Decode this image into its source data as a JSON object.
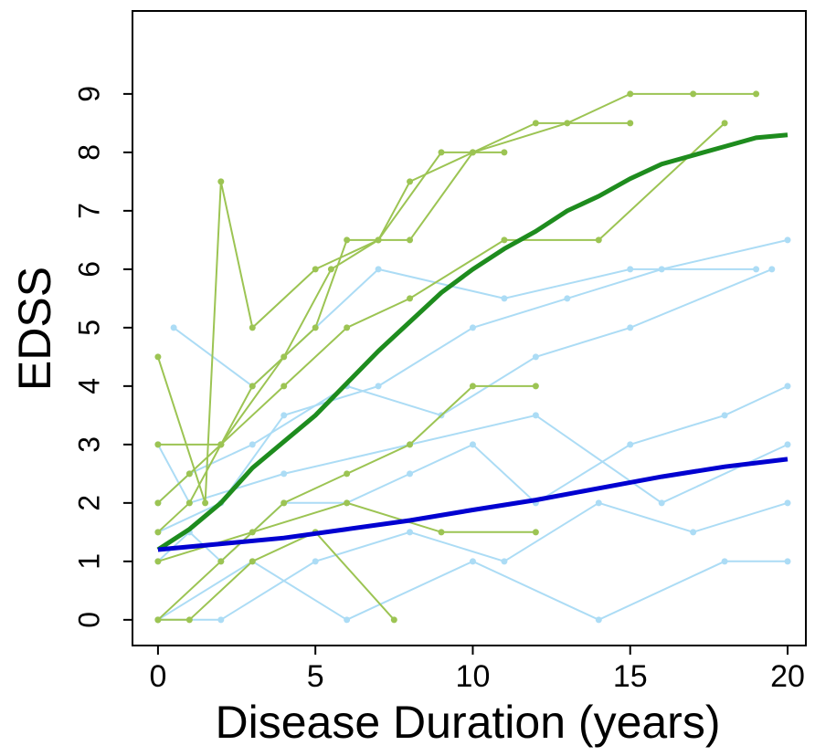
{
  "chart_data": {
    "type": "line",
    "xlabel": "Disease Duration (years)",
    "ylabel": "EDSS",
    "xlim": [
      -0.81,
      20.58
    ],
    "ylim": [
      -0.44,
      10.42
    ],
    "xticks": [
      0,
      5,
      10,
      15,
      20
    ],
    "yticks": [
      0,
      1,
      2,
      3,
      4,
      5,
      6,
      7,
      8,
      9
    ],
    "series": [
      {
        "color": "#acdcf5",
        "x": [
          0,
          1,
          2,
          4,
          6,
          8,
          10,
          12,
          15,
          18,
          20
        ],
        "values": [
          1,
          1.5,
          1,
          2,
          2,
          2.5,
          3,
          2,
          3,
          3.5,
          4
        ]
      },
      {
        "color": "#acdcf5",
        "x": [
          0,
          2,
          5,
          8,
          11,
          14,
          17,
          20
        ],
        "values": [
          0,
          0,
          1,
          1.5,
          1,
          2,
          1.5,
          2
        ]
      },
      {
        "color": "#acdcf5",
        "x": [
          0,
          1,
          3,
          6,
          9,
          12,
          15,
          19.5
        ],
        "values": [
          2,
          2.5,
          3,
          4,
          3.5,
          4.5,
          5,
          6
        ]
      },
      {
        "color": "#acdcf5",
        "x": [
          0,
          2,
          4,
          7,
          10,
          13,
          16,
          20
        ],
        "values": [
          1.5,
          2,
          3.5,
          4,
          5,
          5.5,
          6,
          6.5
        ]
      },
      {
        "color": "#acdcf5",
        "x": [
          0,
          3,
          6,
          10,
          14,
          18,
          20
        ],
        "values": [
          0,
          1,
          0,
          1,
          0,
          1,
          1
        ]
      },
      {
        "color": "#acdcf5",
        "x": [
          0,
          1,
          4,
          8,
          12,
          16,
          20
        ],
        "values": [
          3,
          2,
          2.5,
          3,
          3.5,
          2,
          3
        ]
      },
      {
        "color": "#acdcf5",
        "x": [
          0.5,
          3,
          7,
          11,
          15,
          19
        ],
        "values": [
          5,
          4,
          6,
          5.5,
          6,
          6
        ]
      },
      {
        "color": "#9cc453",
        "x": [
          0,
          1,
          2,
          3,
          5,
          6,
          8,
          10,
          12,
          15
        ],
        "values": [
          1.5,
          2,
          3,
          4,
          5,
          6.5,
          6.5,
          8,
          8.5,
          8.5
        ]
      },
      {
        "color": "#9cc453",
        "x": [
          0,
          2,
          4,
          6,
          8,
          10,
          12
        ],
        "values": [
          0,
          1,
          2,
          2.5,
          3,
          4,
          4
        ]
      },
      {
        "color": "#9cc453",
        "x": [
          0,
          1,
          2,
          4,
          5.5,
          7,
          8,
          10,
          13,
          15,
          17,
          19
        ],
        "values": [
          2,
          2.5,
          3,
          4.5,
          6,
          6.5,
          7.5,
          8,
          8.5,
          9,
          9,
          9
        ]
      },
      {
        "color": "#9cc453",
        "x": [
          0,
          1.5,
          2,
          3,
          5,
          7,
          9,
          11
        ],
        "values": [
          4.5,
          2,
          7.5,
          5,
          6,
          6.5,
          8,
          8
        ]
      },
      {
        "color": "#9cc453",
        "x": [
          0,
          3,
          6,
          9,
          12
        ],
        "values": [
          1,
          1.5,
          2,
          1.5,
          1.5
        ]
      },
      {
        "color": "#9cc453",
        "x": [
          0,
          2,
          4,
          6,
          8,
          11,
          14,
          18
        ],
        "values": [
          3,
          3,
          4,
          5,
          5.5,
          6.5,
          6.5,
          8.5
        ]
      },
      {
        "color": "#9cc453",
        "x": [
          0,
          1,
          3,
          5,
          7.5
        ],
        "values": [
          0,
          0,
          1,
          1.5,
          0
        ]
      },
      {
        "color": "#1e8c1e",
        "smooth": true,
        "x": [
          0,
          1,
          2,
          3,
          4,
          5,
          6,
          7,
          8,
          9,
          10,
          11,
          12,
          13,
          14,
          15,
          16,
          17,
          18,
          19,
          20
        ],
        "values": [
          1.2,
          1.55,
          2.0,
          2.6,
          3.05,
          3.5,
          4.05,
          4.6,
          5.1,
          5.6,
          6.0,
          6.35,
          6.65,
          7.0,
          7.25,
          7.55,
          7.8,
          7.95,
          8.1,
          8.25,
          8.3
        ]
      },
      {
        "color": "#0000d0",
        "smooth": true,
        "x": [
          0,
          2,
          4,
          6,
          8,
          10,
          12,
          14,
          16,
          18,
          20
        ],
        "values": [
          1.2,
          1.3,
          1.4,
          1.55,
          1.7,
          1.88,
          2.05,
          2.25,
          2.45,
          2.62,
          2.75
        ]
      }
    ]
  }
}
